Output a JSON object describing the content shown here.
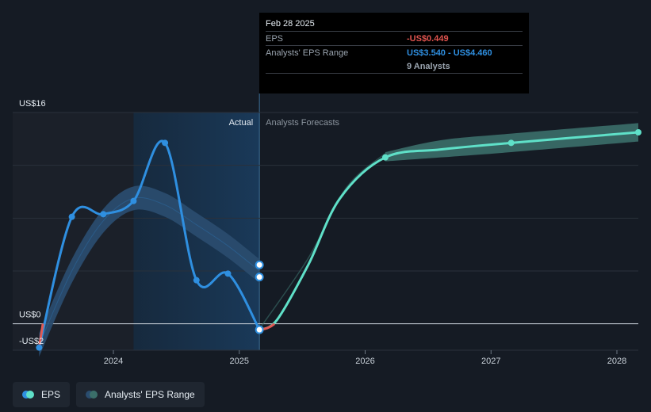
{
  "colors": {
    "background": "#151b24",
    "eps_line": "#2f8fe0",
    "forecast_line": "#5fe0c8",
    "forecast_band": "#3b6f6a",
    "past_band": "#2a4c6e",
    "negative_segment": "#e05a55",
    "tooltip_eps_value": "#e0544f",
    "tooltip_range_value": "#2f8fe0"
  },
  "tooltip": {
    "date": "Feb 28 2025",
    "eps_label": "EPS",
    "eps_value": "-US$0.449",
    "range_label": "Analysts' EPS Range",
    "range_value": "US$3.540 - US$4.460",
    "analysts": "9 Analysts"
  },
  "regions": {
    "actual_label": "Actual",
    "forecast_label": "Analysts Forecasts"
  },
  "legend": {
    "eps_label": "EPS",
    "range_label": "Analysts' EPS Range"
  },
  "chart_data": {
    "type": "line",
    "ylim": [
      -2,
      16
    ],
    "y_ticks": [
      {
        "value": 16,
        "label": "US$16"
      },
      {
        "value": 0,
        "label": "US$0"
      },
      {
        "value": -2,
        "label": "-US$2"
      }
    ],
    "x_ticks": [
      {
        "value": 2024.0,
        "label": "2024"
      },
      {
        "value": 2025.0,
        "label": "2025"
      },
      {
        "value": 2026.0,
        "label": "2026"
      },
      {
        "value": 2027.0,
        "label": "2027"
      },
      {
        "value": 2028.0,
        "label": "2028"
      }
    ],
    "xlim": [
      2023.2,
      2028.17
    ],
    "actual_end": 2025.16,
    "highlight_start": 2024.16,
    "eps_actual": [
      {
        "x": 2023.41,
        "y": -1.8
      },
      {
        "x": 2023.67,
        "y": 8.1
      },
      {
        "x": 2023.92,
        "y": 8.3
      },
      {
        "x": 2024.16,
        "y": 9.3
      },
      {
        "x": 2024.41,
        "y": 13.7
      },
      {
        "x": 2024.66,
        "y": 3.3
      },
      {
        "x": 2024.91,
        "y": 3.8
      },
      {
        "x": 2025.16,
        "y": -0.45
      }
    ],
    "estimate_band_past": [
      {
        "x": 2023.41,
        "y": -1.6
      },
      {
        "x": 2023.67,
        "y": 4.0
      },
      {
        "x": 2023.92,
        "y": 7.8
      },
      {
        "x": 2024.16,
        "y": 9.5
      },
      {
        "x": 2024.41,
        "y": 9.0
      },
      {
        "x": 2024.66,
        "y": 7.5
      },
      {
        "x": 2024.91,
        "y": 5.9
      },
      {
        "x": 2025.16,
        "y": 4.0
      }
    ],
    "estimate_band_past_width": 0.9,
    "estimate_markers_at_actual_end": [
      4.46,
      3.54
    ],
    "eps_forecast": [
      {
        "x": 2025.16,
        "y": -0.45
      },
      {
        "x": 2025.3,
        "y": 0.3
      },
      {
        "x": 2025.55,
        "y": 4.5
      },
      {
        "x": 2025.8,
        "y": 9.5
      },
      {
        "x": 2026.16,
        "y": 12.6
      },
      {
        "x": 2026.6,
        "y": 13.2
      },
      {
        "x": 2027.16,
        "y": 13.7
      },
      {
        "x": 2028.17,
        "y": 14.5
      }
    ],
    "forecast_points": [
      {
        "x": 2026.16,
        "y": 12.6
      },
      {
        "x": 2027.16,
        "y": 13.7
      },
      {
        "x": 2028.17,
        "y": 14.5
      }
    ],
    "forecast_band": [
      {
        "x": 2026.16,
        "low": 12.3,
        "high": 13.0
      },
      {
        "x": 2026.6,
        "low": 12.6,
        "high": 13.9
      },
      {
        "x": 2027.16,
        "low": 13.0,
        "high": 14.4
      },
      {
        "x": 2028.17,
        "low": 13.8,
        "high": 15.2
      }
    ]
  }
}
